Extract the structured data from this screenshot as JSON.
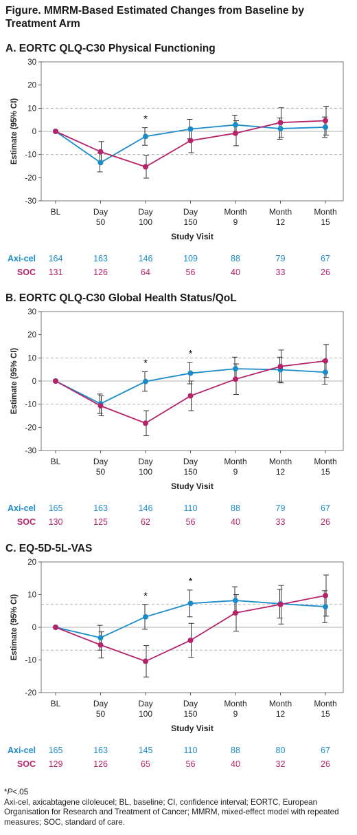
{
  "figure_title": "Figure. MMRM-Based Estimated Changes from Baseline by Treatment Arm",
  "colors": {
    "axicel": "#1c8cc9",
    "soc": "#b5246b",
    "axis": "#333333",
    "grid": "#b0b0b0",
    "errorbar": "#333333"
  },
  "x_labels": [
    [
      "BL"
    ],
    [
      "Day",
      "50"
    ],
    [
      "Day",
      "100"
    ],
    [
      "Day",
      "150"
    ],
    [
      "Month",
      "9"
    ],
    [
      "Month",
      "12"
    ],
    [
      "Month",
      "15"
    ]
  ],
  "chart_data": [
    {
      "title": "A. EORTC QLQ-C30 Physical Functioning",
      "type": "line",
      "xlabel": "Study Visit",
      "ylabel": "Estimate (95% CI)",
      "ylim": [
        -30,
        30
      ],
      "yticks": [
        30,
        20,
        10,
        0,
        -10,
        -20,
        -30
      ],
      "reference_lines": [
        10,
        -10
      ],
      "significant": [
        2
      ],
      "series": [
        {
          "name": "Axi-cel",
          "values": [
            0,
            -13.5,
            -2.2,
            1.0,
            2.8,
            1.2,
            1.8
          ],
          "ci": [
            [
              0,
              0
            ],
            [
              -17.5,
              -9.5
            ],
            [
              -6,
              1.6
            ],
            [
              -3.2,
              5.2
            ],
            [
              -1.2,
              7
            ],
            [
              -3.4,
              5.8
            ],
            [
              -2.6,
              6.2
            ]
          ],
          "n": [
            164,
            163,
            146,
            109,
            88,
            79,
            67
          ]
        },
        {
          "name": "SOC",
          "values": [
            0,
            -8.8,
            -15.3,
            -4.0,
            -0.8,
            3.8,
            4.6
          ],
          "ci": [
            [
              0,
              0
            ],
            [
              -12.8,
              -4.4
            ],
            [
              -20.2,
              -10.4
            ],
            [
              -9.2,
              1.2
            ],
            [
              -6.2,
              4.6
            ],
            [
              -2.6,
              10.2
            ],
            [
              -1.6,
              10.8
            ]
          ],
          "n": [
            131,
            126,
            64,
            56,
            40,
            33,
            26
          ]
        }
      ]
    },
    {
      "title": "B. EORTC QLQ-C30 Global Health Status/QoL",
      "type": "line",
      "xlabel": "Study Visit",
      "ylabel": "Estimate (95% CI)",
      "ylim": [
        -30,
        30
      ],
      "yticks": [
        30,
        20,
        10,
        0,
        -10,
        -20,
        -30
      ],
      "reference_lines": [
        10,
        -10
      ],
      "significant": [
        2,
        3
      ],
      "series": [
        {
          "name": "Axi-cel",
          "values": [
            0,
            -9.8,
            -0.2,
            3.4,
            5.3,
            4.9,
            3.8
          ],
          "ci": [
            [
              0,
              0
            ],
            [
              -14,
              -5.6
            ],
            [
              -4.4,
              4
            ],
            [
              -1.2,
              8
            ],
            [
              0.4,
              10.3
            ],
            [
              -0.4,
              10.3
            ],
            [
              -1.4,
              9
            ]
          ],
          "n": [
            165,
            163,
            146,
            110,
            88,
            79,
            67
          ]
        },
        {
          "name": "SOC",
          "values": [
            0,
            -10.7,
            -18.2,
            -6.4,
            0.8,
            6.3,
            8.7
          ],
          "ci": [
            [
              0,
              0
            ],
            [
              -15,
              -6.4
            ],
            [
              -23.6,
              -12.8
            ],
            [
              -12.8,
              0
            ],
            [
              -5.8,
              7.4
            ],
            [
              -0.8,
              13.4
            ],
            [
              1.6,
              15.8
            ]
          ],
          "n": [
            130,
            125,
            62,
            56,
            40,
            33,
            26
          ]
        }
      ]
    },
    {
      "title": "C. EQ-5D-5L-VAS",
      "type": "line",
      "xlabel": "Study Visit",
      "ylabel": "Estimate (95% CI)",
      "ylim": [
        -20,
        20
      ],
      "yticks": [
        20,
        10,
        0,
        -10,
        -20
      ],
      "reference_lines": [
        7,
        -7
      ],
      "significant": [
        2,
        3
      ],
      "series": [
        {
          "name": "Axi-cel",
          "values": [
            0,
            -3.2,
            3.2,
            7.3,
            8.2,
            7.2,
            6.3
          ],
          "ci": [
            [
              0,
              0
            ],
            [
              -7,
              0.6
            ],
            [
              -0.6,
              7
            ],
            [
              3.2,
              11.4
            ],
            [
              4,
              12.4
            ],
            [
              2.8,
              11.6
            ],
            [
              1.4,
              11.2
            ]
          ],
          "n": [
            165,
            163,
            145,
            110,
            88,
            80,
            67
          ]
        },
        {
          "name": "SOC",
          "values": [
            0,
            -5.4,
            -10.4,
            -4.0,
            4.4,
            7.0,
            9.7
          ],
          "ci": [
            [
              0,
              0
            ],
            [
              -9.4,
              -1.4
            ],
            [
              -15.2,
              -5.6
            ],
            [
              -9.2,
              1.2
            ],
            [
              -1.2,
              10
            ],
            [
              1,
              12.8
            ],
            [
              3.4,
              16
            ]
          ],
          "n": [
            129,
            126,
            65,
            56,
            40,
            32,
            26
          ]
        }
      ]
    }
  ],
  "footnote": {
    "significance_symbol": "*",
    "significance_label": "P",
    "significance_value": "<.05",
    "abbreviations": "Axi-cel, axicabtagene ciloleucel; BL, baseline; CI, confidence interval; EORTC, European Organisation for Research and Treatment of Cancer;  MMRM, mixed-effect model with repeated measures; SOC, standard of care."
  }
}
